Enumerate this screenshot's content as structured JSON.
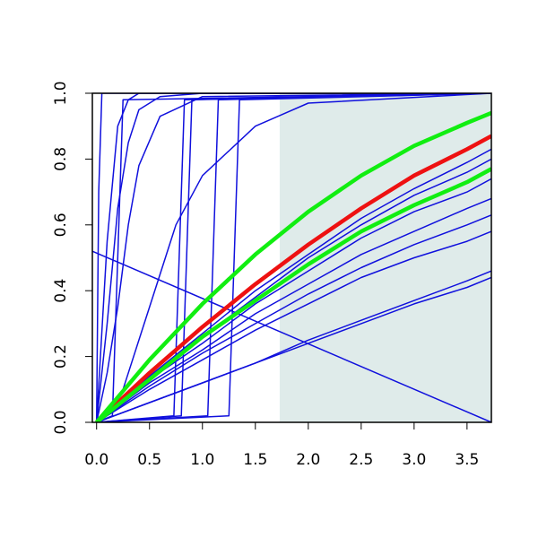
{
  "chart_data": {
    "type": "line",
    "xlim": [
      -0.04,
      3.73
    ],
    "ylim": [
      0,
      1
    ],
    "xticks": [
      {
        "value": 0,
        "label": "0.0"
      },
      {
        "value": 0.5,
        "label": "0.5"
      },
      {
        "value": 1,
        "label": "1.0"
      },
      {
        "value": 1.5,
        "label": "1.5"
      },
      {
        "value": 2,
        "label": "2.0"
      },
      {
        "value": 2.5,
        "label": "2.5"
      },
      {
        "value": 3,
        "label": "3.0"
      },
      {
        "value": 3.5,
        "label": "3.5"
      }
    ],
    "yticks": [
      {
        "value": 0,
        "label": "0.0"
      },
      {
        "value": 0.2,
        "label": "0.2"
      },
      {
        "value": 0.4,
        "label": "0.4"
      },
      {
        "value": 0.6,
        "label": "0.6"
      },
      {
        "value": 0.8,
        "label": "0.8"
      },
      {
        "value": 1,
        "label": "1.0"
      }
    ],
    "shaded_region": {
      "xlim": [
        1.73,
        3.73
      ],
      "color": "#dfebea"
    },
    "series": [
      {
        "color": "#1010dd",
        "x": [
          0,
          0.5,
          1,
          1.5,
          2,
          2.5,
          3,
          3.5,
          3.73
        ],
        "values": [
          0,
          0.14,
          0.27,
          0.4,
          0.51,
          0.62,
          0.71,
          0.79,
          0.83
        ]
      },
      {
        "color": "#1010dd",
        "x": [
          0,
          0.5,
          1,
          1.5,
          2,
          2.5,
          3,
          3.5,
          3.73
        ],
        "values": [
          0,
          0.14,
          0.26,
          0.38,
          0.5,
          0.6,
          0.69,
          0.76,
          0.8
        ]
      },
      {
        "color": "#1010dd",
        "x": [
          0,
          0.5,
          1,
          1.5,
          2,
          2.5,
          3,
          3.5,
          3.73
        ],
        "values": [
          0,
          0.13,
          0.24,
          0.36,
          0.46,
          0.56,
          0.64,
          0.7,
          0.74
        ]
      },
      {
        "color": "#1010dd",
        "x": [
          0,
          0.5,
          1,
          1.5,
          2,
          2.5,
          3,
          3.5,
          3.73
        ],
        "values": [
          0,
          0.12,
          0.22,
          0.33,
          0.42,
          0.51,
          0.58,
          0.65,
          0.68
        ]
      },
      {
        "color": "#1010dd",
        "x": [
          0,
          0.5,
          1,
          1.5,
          2,
          2.5,
          3,
          3.5,
          3.73
        ],
        "values": [
          0,
          0.11,
          0.21,
          0.3,
          0.39,
          0.47,
          0.54,
          0.6,
          0.63
        ]
      },
      {
        "color": "#1010dd",
        "x": [
          0,
          0.5,
          1,
          1.5,
          2,
          2.5,
          3,
          3.5,
          3.73
        ],
        "values": [
          0,
          0.1,
          0.19,
          0.28,
          0.36,
          0.44,
          0.5,
          0.55,
          0.58
        ]
      },
      {
        "color": "#1010dd",
        "x": [
          0,
          0.5,
          1,
          1.5,
          2,
          2.5,
          3,
          3.5,
          3.73
        ],
        "values": [
          0,
          0.06,
          0.12,
          0.18,
          0.25,
          0.31,
          0.37,
          0.43,
          0.46
        ]
      },
      {
        "color": "#1010dd",
        "x": [
          0,
          0.5,
          1,
          1.5,
          2,
          2.5,
          3,
          3.5,
          3.73
        ],
        "values": [
          0,
          0.06,
          0.12,
          0.18,
          0.24,
          0.3,
          0.36,
          0.41,
          0.44
        ]
      },
      {
        "color": "#1010dd",
        "x": [
          -0.04,
          3.73
        ],
        "values": [
          0.52,
          0
        ]
      },
      {
        "color": "#1010dd",
        "x": [
          0,
          0.02,
          0.05,
          3.73
        ],
        "values": [
          0,
          0.7,
          1,
          1
        ]
      },
      {
        "color": "#1010dd",
        "x": [
          0,
          0.1,
          0.2,
          0.3,
          0.4,
          0.6,
          1,
          3.73
        ],
        "values": [
          0,
          0.55,
          0.9,
          0.98,
          1,
          1,
          1,
          1
        ]
      },
      {
        "color": "#1010dd",
        "x": [
          0,
          0.1,
          0.2,
          0.3,
          0.4,
          0.6,
          1,
          3.73
        ],
        "values": [
          0,
          0.3,
          0.65,
          0.85,
          0.95,
          0.99,
          1,
          1
        ]
      },
      {
        "color": "#1010dd",
        "x": [
          0,
          0.1,
          0.2,
          0.3,
          0.4,
          0.6,
          1,
          3.73
        ],
        "values": [
          0,
          0.15,
          0.35,
          0.6,
          0.78,
          0.93,
          0.99,
          1
        ]
      },
      {
        "color": "#1010dd",
        "x": [
          0,
          0.25,
          0.5,
          0.75,
          1,
          1.5,
          2,
          3.73
        ],
        "values": [
          0,
          0.1,
          0.35,
          0.6,
          0.75,
          0.9,
          0.97,
          1
        ]
      },
      {
        "color": "#1010dd",
        "x": [
          0,
          0.15,
          0.2,
          0.25,
          3.73
        ],
        "values": [
          0,
          0.02,
          0.5,
          0.98,
          1
        ]
      },
      {
        "color": "#1010dd",
        "x": [
          0,
          0.73,
          0.78,
          0.83,
          3.73
        ],
        "values": [
          0,
          0.02,
          0.5,
          0.98,
          1
        ]
      },
      {
        "color": "#1010dd",
        "x": [
          0,
          0.8,
          0.85,
          0.9,
          3.73
        ],
        "values": [
          0,
          0.02,
          0.5,
          0.98,
          1
        ]
      },
      {
        "color": "#1010dd",
        "x": [
          0,
          1.05,
          1.1,
          1.15,
          3.73
        ],
        "values": [
          0,
          0.02,
          0.5,
          0.98,
          1
        ]
      },
      {
        "color": "#1010dd",
        "x": [
          0,
          1.25,
          1.3,
          1.35,
          3.73
        ],
        "values": [
          0,
          0.02,
          0.5,
          0.98,
          1
        ]
      },
      {
        "color": "#ee1111",
        "lwd": 4.5,
        "x": [
          0,
          0.5,
          1,
          1.5,
          2,
          2.5,
          3,
          3.5,
          3.73
        ],
        "values": [
          0,
          0.15,
          0.29,
          0.42,
          0.54,
          0.65,
          0.75,
          0.83,
          0.87
        ]
      },
      {
        "color": "#11ee11",
        "lwd": 4.5,
        "x": [
          0,
          0.5,
          1,
          1.5,
          2,
          2.5,
          3,
          3.5,
          3.73
        ],
        "values": [
          0,
          0.19,
          0.36,
          0.51,
          0.64,
          0.75,
          0.84,
          0.91,
          0.94
        ]
      },
      {
        "color": "#11ee11",
        "lwd": 4.5,
        "x": [
          0,
          0.5,
          1,
          1.5,
          2,
          2.5,
          3,
          3.5,
          3.73
        ],
        "values": [
          0,
          0.13,
          0.26,
          0.37,
          0.48,
          0.58,
          0.66,
          0.73,
          0.77
        ]
      }
    ]
  }
}
